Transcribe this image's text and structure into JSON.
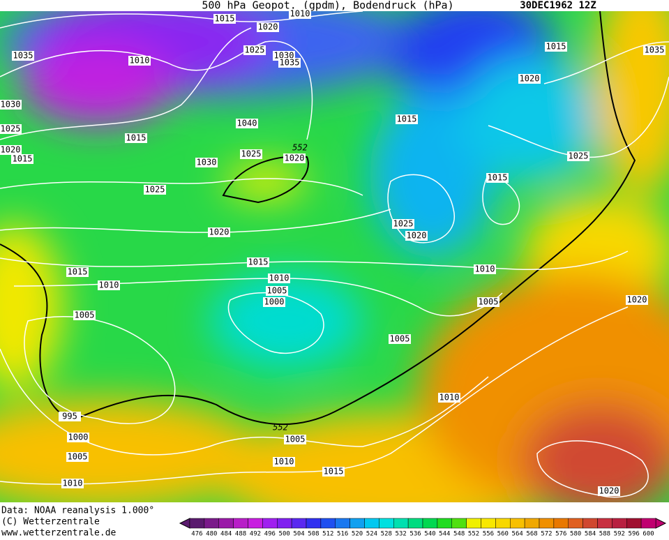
{
  "header": {
    "title": "500 hPa Geopot. (gpdm), Bodendruck (hPa)",
    "date": "30DEC1962 12Z"
  },
  "isobar_labels": [
    "1015",
    "1020",
    "1010",
    "1035",
    "1010",
    "1025",
    "1030",
    "1035",
    "1030",
    "1025",
    "1040",
    "1015",
    "1020",
    "1015",
    "1025",
    "552",
    "1020",
    "1030",
    "1025",
    "1015",
    "1015",
    "1020",
    "1035",
    "1025",
    "1015",
    "1025",
    "1020",
    "1020",
    "1015",
    "1015",
    "1010",
    "1010",
    "1005",
    "1000",
    "1010",
    "1005",
    "1005",
    "1020",
    "1005",
    "1010",
    "995",
    "552",
    "1000",
    "1005",
    "1005",
    "1010",
    "1015",
    "1010",
    "1020"
  ],
  "footer": {
    "source": "Data: NOAA reanalysis 1.000°",
    "copyright": "(C) Wetterzentrale",
    "url": "www.wetterzentrale.de"
  },
  "colorbar": {
    "labels": [
      476,
      480,
      484,
      488,
      492,
      496,
      500,
      504,
      508,
      512,
      516,
      520,
      524,
      528,
      532,
      536,
      540,
      544,
      548,
      552,
      556,
      560,
      564,
      568,
      572,
      576,
      580,
      584,
      588,
      592,
      596,
      600
    ],
    "colors": [
      "#5a1a6e",
      "#7a1a8a",
      "#9a1aa8",
      "#b81ec8",
      "#c81ee0",
      "#a020f0",
      "#8020f0",
      "#5a28f0",
      "#3030f0",
      "#2050f0",
      "#1a78f0",
      "#10a0f0",
      "#00c8f0",
      "#00e0e0",
      "#00e0b0",
      "#00dc80",
      "#00d850",
      "#20dc20",
      "#50e010",
      "#f0f000",
      "#f8e800",
      "#f8d800",
      "#f8c000",
      "#f0a800",
      "#f09000",
      "#e87800",
      "#e06020",
      "#d04830",
      "#c83040",
      "#b82040",
      "#a01030",
      "#c00070"
    ]
  }
}
